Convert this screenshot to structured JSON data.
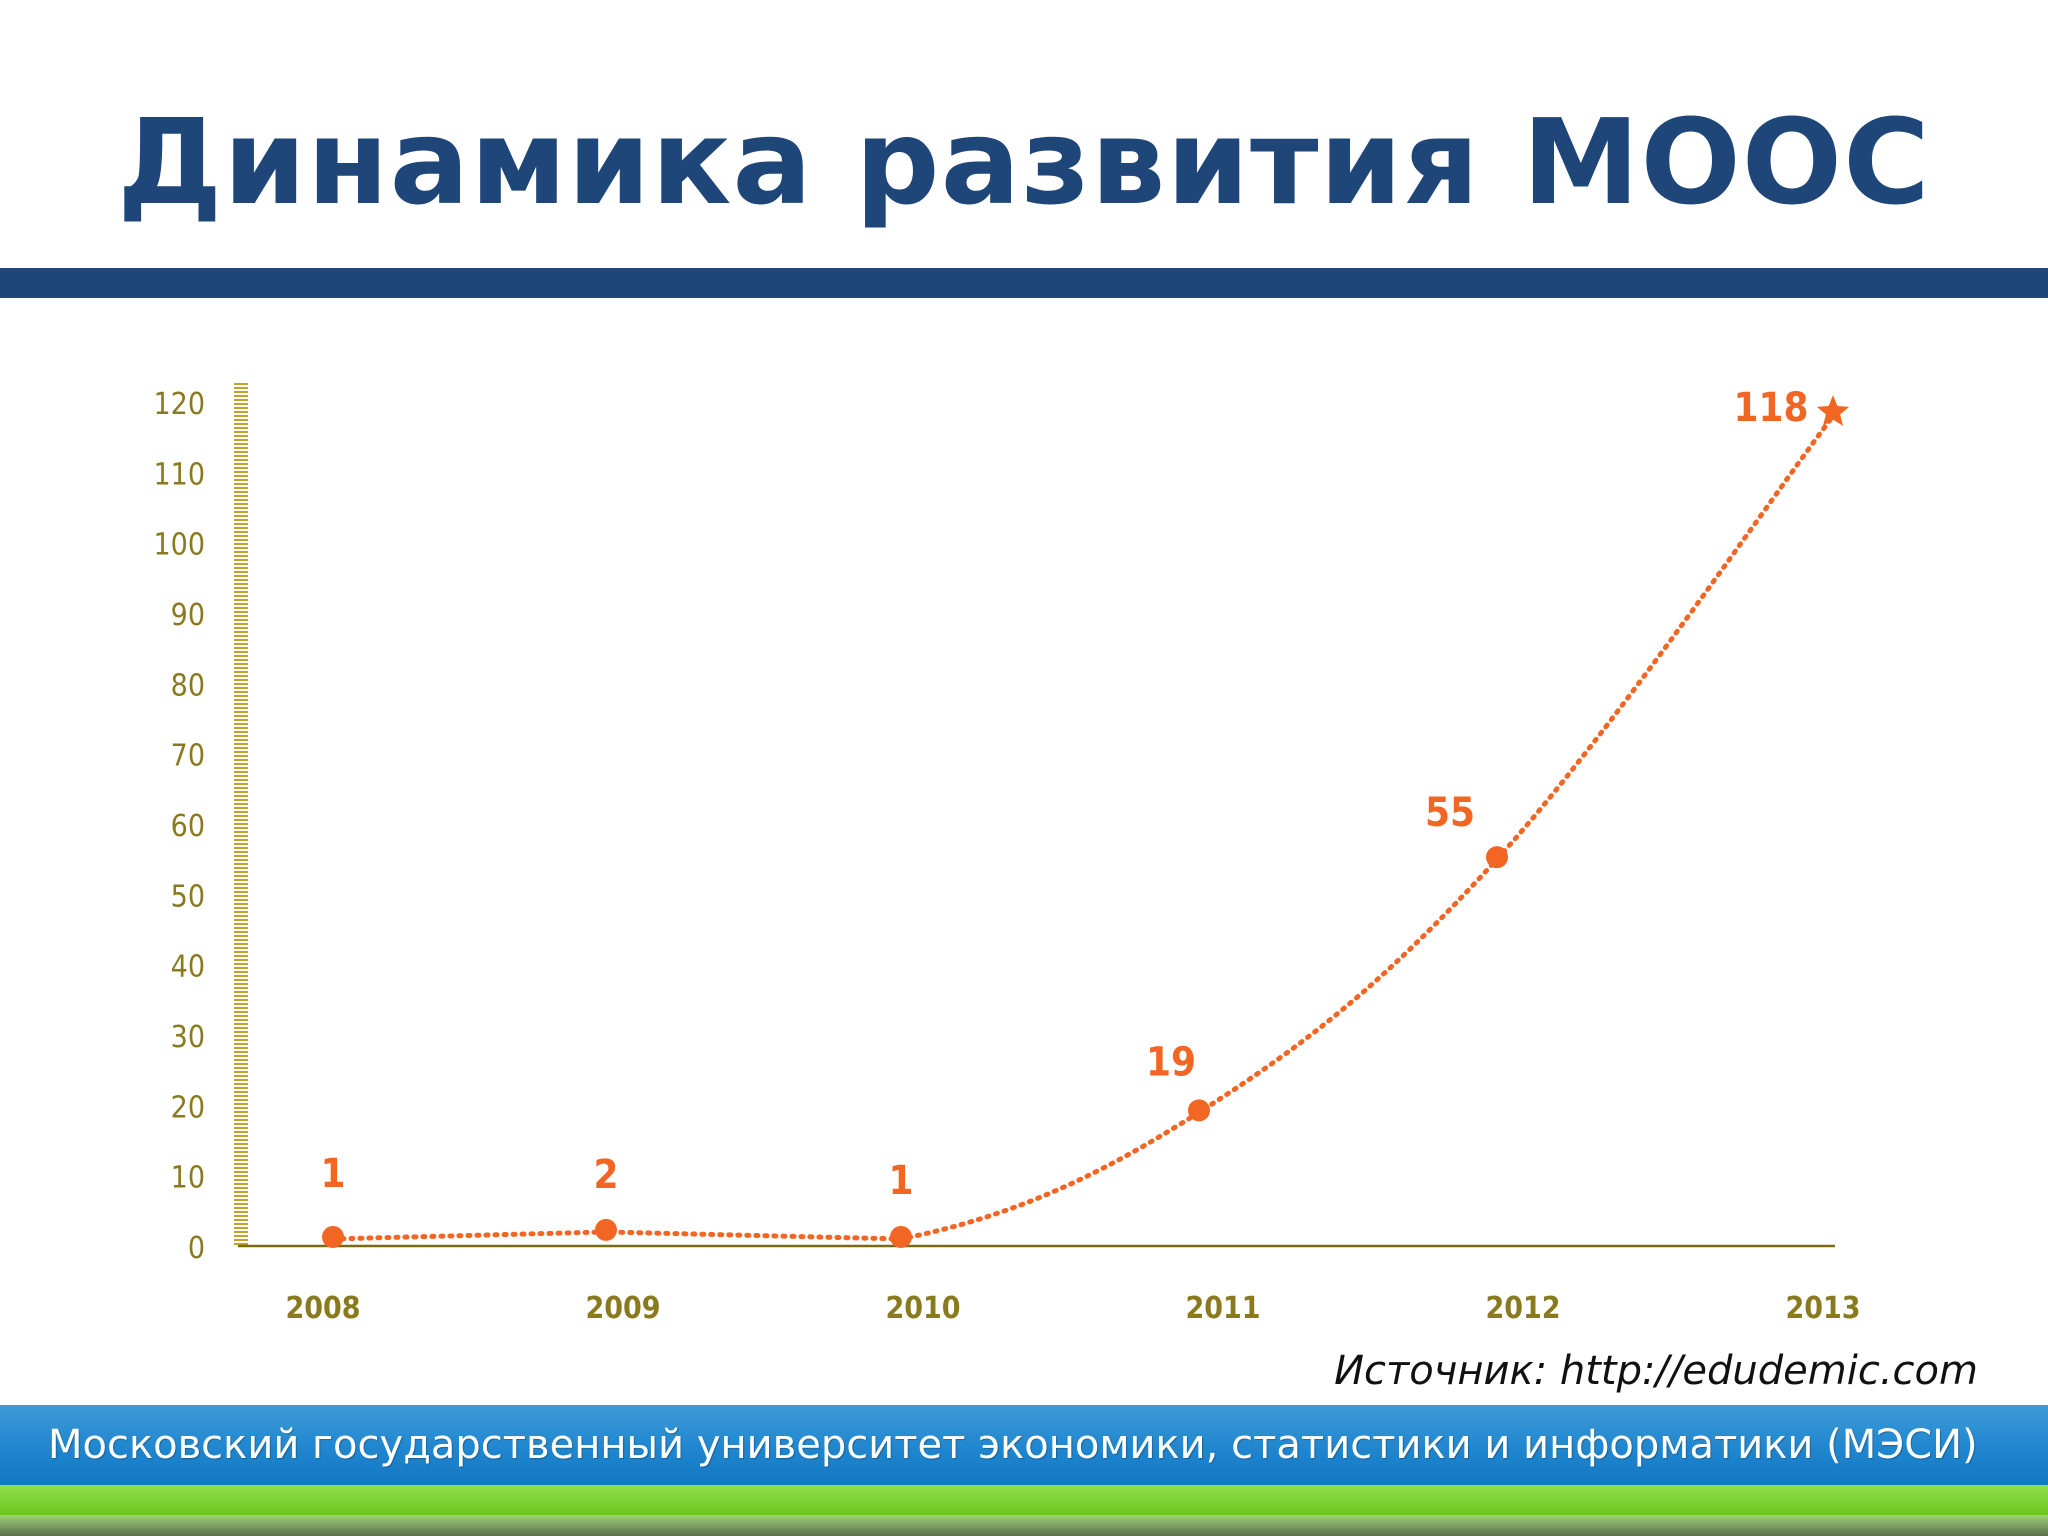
{
  "slide": {
    "title": "Динамика развития МООС",
    "source": "Источник: http://edudemic.com",
    "footer": "Московский государственный университет экономики, статистики и информатики (МЭСИ)"
  },
  "colors": {
    "title": "#1f4679",
    "series": "#f26522",
    "axis": "#c8a227",
    "tick_label": "#8a7a1e",
    "label": "#f26522"
  },
  "chart_data": {
    "type": "line",
    "title": "",
    "xlabel": "",
    "ylabel": "",
    "categories": [
      "2008",
      "2009",
      "2010",
      "2011",
      "2012",
      "2013"
    ],
    "series": [
      {
        "values": [
          1,
          2,
          1,
          19,
          55,
          118
        ]
      }
    ],
    "data_labels": [
      "1",
      "2",
      "1",
      "19",
      "55",
      "118"
    ],
    "yticks": [
      0,
      10,
      20,
      30,
      40,
      50,
      60,
      70,
      80,
      90,
      100,
      110,
      120
    ],
    "ylim": [
      0,
      120
    ],
    "grid": false,
    "legend": "none",
    "line_style": "dotted",
    "last_marker": "star"
  }
}
